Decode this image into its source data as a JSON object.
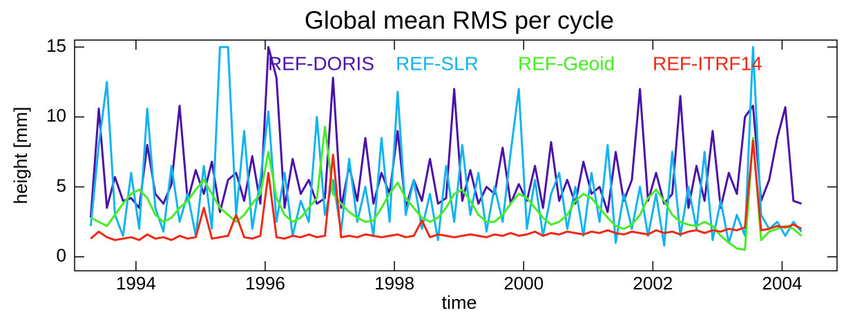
{
  "chart_data": {
    "type": "line",
    "title": "Global mean RMS per cycle",
    "xlabel": "time",
    "ylabel": "height [mm]",
    "xlim": [
      1993.05,
      2004.85
    ],
    "ylim": [
      -1,
      15.5
    ],
    "xticks": [
      1994,
      1996,
      1998,
      2000,
      2002,
      2004
    ],
    "yticks": [
      0,
      5,
      10,
      15
    ],
    "grid": false,
    "x": [
      1993.3,
      1993.425,
      1993.55,
      1993.675,
      1993.8,
      1993.925,
      1994.05,
      1994.175,
      1994.3,
      1994.425,
      1994.55,
      1994.675,
      1994.8,
      1994.925,
      1995.05,
      1995.175,
      1995.3,
      1995.425,
      1995.55,
      1995.675,
      1995.8,
      1995.925,
      1996.05,
      1996.175,
      1996.3,
      1996.425,
      1996.55,
      1996.675,
      1996.8,
      1996.925,
      1997.05,
      1997.175,
      1997.3,
      1997.425,
      1997.55,
      1997.675,
      1997.8,
      1997.925,
      1998.05,
      1998.175,
      1998.3,
      1998.425,
      1998.55,
      1998.675,
      1998.8,
      1998.925,
      1999.05,
      1999.175,
      1999.3,
      1999.425,
      1999.55,
      1999.675,
      1999.8,
      1999.925,
      2000.05,
      2000.175,
      2000.3,
      2000.425,
      2000.55,
      2000.675,
      2000.8,
      2000.925,
      2001.05,
      2001.175,
      2001.3,
      2001.425,
      2001.55,
      2001.675,
      2001.8,
      2001.925,
      2002.05,
      2002.175,
      2002.3,
      2002.425,
      2002.55,
      2002.675,
      2002.8,
      2002.925,
      2003.05,
      2003.175,
      2003.3,
      2003.425,
      2003.55,
      2003.675,
      2003.8,
      2003.925,
      2004.05,
      2004.175,
      2004.3
    ],
    "series": [
      {
        "name": "REF-DORIS",
        "color": "#4a12a8",
        "values": [
          2.8,
          10.6,
          3.5,
          5.7,
          4.0,
          4.2,
          3.5,
          8.0,
          4.5,
          3.8,
          5.2,
          10.8,
          4.0,
          6.2,
          4.5,
          6.8,
          3.2,
          5.5,
          6.0,
          4.0,
          7.2,
          3.8,
          15.0,
          12.8,
          3.5,
          7.0,
          4.5,
          5.5,
          3.8,
          4.2,
          12.8,
          3.5,
          6.5,
          4.0,
          8.5,
          3.8,
          6.0,
          4.5,
          9.0,
          3.5,
          5.5,
          4.0,
          7.0,
          3.8,
          4.2,
          12.0,
          4.0,
          6.2,
          3.8,
          5.0,
          4.5,
          7.8,
          3.8,
          5.2,
          4.0,
          6.5,
          3.5,
          8.2,
          4.0,
          5.5,
          3.8,
          6.8,
          4.5,
          5.0,
          3.2,
          7.5,
          4.0,
          5.5,
          12.0,
          4.0,
          6.0,
          3.8,
          4.5,
          11.5,
          3.5,
          6.5,
          4.0,
          9.0,
          3.5,
          6.0,
          4.5,
          10.0,
          10.8,
          4.0,
          5.5,
          8.5,
          10.7,
          4.0,
          3.8
        ]
      },
      {
        "name": "REF-SLR",
        "color": "#12b4f0",
        "values": [
          2.2,
          8.0,
          12.5,
          3.0,
          1.5,
          6.0,
          2.0,
          10.6,
          3.5,
          1.8,
          6.5,
          2.5,
          4.5,
          1.5,
          6.5,
          2.0,
          15.0,
          15.0,
          3.0,
          9.0,
          2.0,
          5.5,
          10.4,
          2.5,
          6.0,
          1.5,
          4.0,
          2.5,
          10.0,
          3.0,
          5.5,
          1.8,
          7.0,
          2.5,
          5.0,
          1.5,
          8.5,
          2.5,
          11.8,
          3.0,
          5.5,
          2.0,
          4.5,
          1.2,
          6.5,
          2.5,
          8.0,
          3.0,
          6.0,
          1.8,
          5.0,
          2.5,
          7.5,
          12.0,
          2.0,
          5.5,
          1.5,
          4.5,
          6.0,
          2.0,
          5.0,
          1.5,
          6.0,
          2.5,
          8.0,
          1.0,
          4.5,
          2.0,
          5.0,
          1.5,
          4.5,
          0.8,
          7.5,
          1.5,
          5.0,
          2.0,
          7.5,
          1.2,
          4.0,
          1.0,
          3.0,
          1.5,
          15.0,
          3.0,
          2.0,
          2.5,
          1.5,
          2.5,
          1.8
        ]
      },
      {
        "name": "REF-Geoid",
        "color": "#44ee22",
        "values": [
          2.8,
          2.5,
          2.2,
          3.0,
          3.8,
          4.5,
          4.8,
          4.2,
          3.0,
          2.5,
          2.8,
          3.5,
          4.0,
          4.8,
          5.5,
          4.5,
          3.5,
          3.0,
          2.5,
          3.0,
          3.8,
          4.5,
          7.5,
          4.2,
          3.0,
          2.5,
          2.8,
          3.5,
          4.2,
          9.3,
          4.5,
          3.8,
          3.2,
          2.8,
          2.5,
          2.6,
          3.5,
          4.5,
          5.3,
          4.2,
          3.5,
          2.8,
          2.5,
          2.8,
          3.5,
          4.5,
          4.8,
          4.0,
          3.0,
          2.5,
          2.5,
          3.0,
          3.8,
          4.5,
          4.2,
          3.5,
          2.8,
          2.3,
          2.5,
          3.0,
          4.0,
          4.5,
          4.2,
          3.5,
          2.8,
          2.2,
          2.0,
          2.3,
          3.0,
          4.2,
          4.8,
          4.0,
          3.0,
          2.5,
          2.3,
          2.2,
          2.5,
          2.2,
          1.5,
          1.0,
          0.6,
          0.5,
          8.5,
          1.2,
          1.8,
          2.0,
          2.2,
          2.0,
          1.5
        ]
      },
      {
        "name": "REF-ITRF14",
        "color": "#f02814",
        "values": [
          1.3,
          1.8,
          1.4,
          1.2,
          1.3,
          1.4,
          1.2,
          1.6,
          1.3,
          1.4,
          1.2,
          1.5,
          1.3,
          1.4,
          3.5,
          1.3,
          1.4,
          1.5,
          3.0,
          1.4,
          1.3,
          1.5,
          6.0,
          1.4,
          1.3,
          1.5,
          1.4,
          1.6,
          1.4,
          1.5,
          7.3,
          1.4,
          1.5,
          1.4,
          1.6,
          1.5,
          1.4,
          1.5,
          1.6,
          1.4,
          1.5,
          2.6,
          1.4,
          1.6,
          1.5,
          1.4,
          1.5,
          1.6,
          1.5,
          1.4,
          1.6,
          1.5,
          1.7,
          1.5,
          1.6,
          1.8,
          1.5,
          1.7,
          1.6,
          1.8,
          1.7,
          1.6,
          1.8,
          1.7,
          1.9,
          1.7,
          1.6,
          1.8,
          1.7,
          1.6,
          1.9,
          1.7,
          1.8,
          1.6,
          1.8,
          1.9,
          1.7,
          1.9,
          1.8,
          2.0,
          1.9,
          2.1,
          8.3,
          1.9,
          2.0,
          2.2,
          2.1,
          2.3,
          2.0
        ]
      }
    ]
  }
}
